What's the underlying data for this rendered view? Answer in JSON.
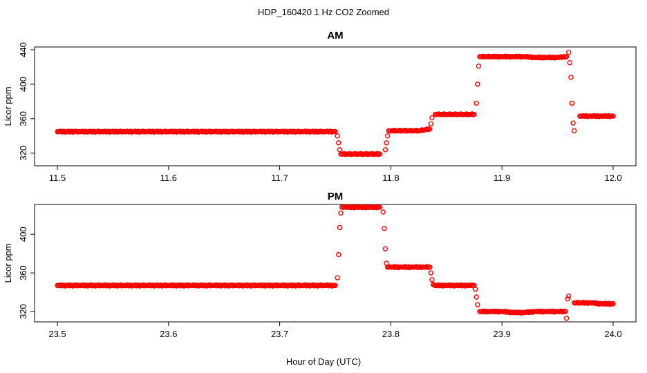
{
  "figure": {
    "title": "HDP_160420  1 Hz CO2 Zoomed",
    "xlabel": "Hour of Day (UTC)",
    "marker_color": "#ff0000"
  },
  "chart_data": [
    {
      "type": "scatter",
      "title": "AM",
      "ylabel": "Licor ppm",
      "xlabel": "Hour of Day (UTC)",
      "xlim": [
        11.5,
        12.0
      ],
      "ylim": [
        315,
        440
      ],
      "xticks": [
        "11.5",
        "11.6",
        "11.7",
        "11.8",
        "11.9",
        "12.0"
      ],
      "yticks": [
        "320",
        "360",
        "400",
        "440"
      ],
      "grid": false,
      "marker": "open-circle",
      "series": [
        {
          "x": [
            11.5,
            11.52,
            11.54,
            11.56,
            11.58,
            11.6,
            11.62,
            11.64,
            11.66,
            11.68,
            11.7,
            11.72,
            11.74,
            11.75,
            11.752,
            11.753,
            11.754,
            11.755,
            11.76,
            11.765,
            11.77,
            11.775,
            11.78,
            11.785,
            11.79,
            11.795,
            11.796,
            11.797,
            11.798,
            11.8,
            11.805,
            11.81,
            11.815,
            11.82,
            11.825,
            11.83,
            11.835,
            11.836,
            11.837,
            11.84,
            11.845,
            11.85,
            11.855,
            11.86,
            11.865,
            11.87,
            11.875,
            11.877,
            11.878,
            11.879,
            11.88,
            11.885,
            11.89,
            11.9,
            11.91,
            11.92,
            11.93,
            11.94,
            11.95,
            11.958,
            11.96,
            11.961,
            11.962,
            11.963,
            11.964,
            11.965,
            11.97,
            11.98,
            11.99,
            12.0
          ],
          "y": [
            345,
            345,
            345,
            345,
            345,
            345,
            345,
            345,
            345,
            345,
            345,
            345,
            345,
            345,
            340,
            332,
            324,
            319,
            319,
            319,
            319,
            319,
            319,
            319,
            319,
            324,
            332,
            340,
            346,
            346,
            346,
            346,
            346,
            346,
            346,
            347,
            348,
            354,
            361,
            365,
            365,
            365,
            365,
            365,
            365,
            365,
            365,
            378,
            400,
            421,
            432,
            432,
            432,
            432,
            432,
            432,
            431,
            431,
            431,
            432,
            437,
            425,
            408,
            378,
            355,
            346,
            363,
            363,
            363,
            363
          ]
        }
      ]
    },
    {
      "type": "scatter",
      "title": "PM",
      "ylabel": "Licor ppm",
      "xlabel": "Hour of Day (UTC)",
      "xlim": [
        23.5,
        24.0
      ],
      "ylim": [
        315,
        428
      ],
      "xticks": [
        "23.5",
        "23.6",
        "23.7",
        "23.8",
        "23.9",
        "24.0"
      ],
      "yticks": [
        "320",
        "360",
        "400"
      ],
      "grid": false,
      "marker": "open-circle",
      "series": [
        {
          "x": [
            23.5,
            23.52,
            23.54,
            23.56,
            23.58,
            23.6,
            23.62,
            23.64,
            23.66,
            23.68,
            23.7,
            23.72,
            23.74,
            23.75,
            23.752,
            23.753,
            23.754,
            23.755,
            23.756,
            23.76,
            23.77,
            23.78,
            23.79,
            23.793,
            23.794,
            23.795,
            23.796,
            23.797,
            23.8,
            23.81,
            23.82,
            23.83,
            23.835,
            23.836,
            23.837,
            23.838,
            23.84,
            23.85,
            23.86,
            23.87,
            23.875,
            23.876,
            23.877,
            23.878,
            23.88,
            23.89,
            23.9,
            23.91,
            23.92,
            23.93,
            23.94,
            23.95,
            23.957,
            23.958,
            23.959,
            23.96,
            23.965,
            23.97,
            23.98,
            23.99,
            24.0
          ],
          "y": [
            347,
            347,
            347,
            347,
            347,
            347,
            347,
            347,
            347,
            347,
            347,
            347,
            347,
            347,
            355,
            379,
            407,
            422,
            428,
            428,
            428,
            428,
            428,
            423,
            406,
            385,
            370,
            366,
            366,
            366,
            366,
            366,
            366,
            360,
            353,
            348,
            347,
            347,
            347,
            347,
            347,
            343,
            335,
            327,
            320,
            320,
            320,
            319,
            319,
            320,
            320,
            320,
            320,
            313,
            333,
            336,
            329,
            329,
            329,
            328,
            328
          ]
        }
      ]
    }
  ]
}
